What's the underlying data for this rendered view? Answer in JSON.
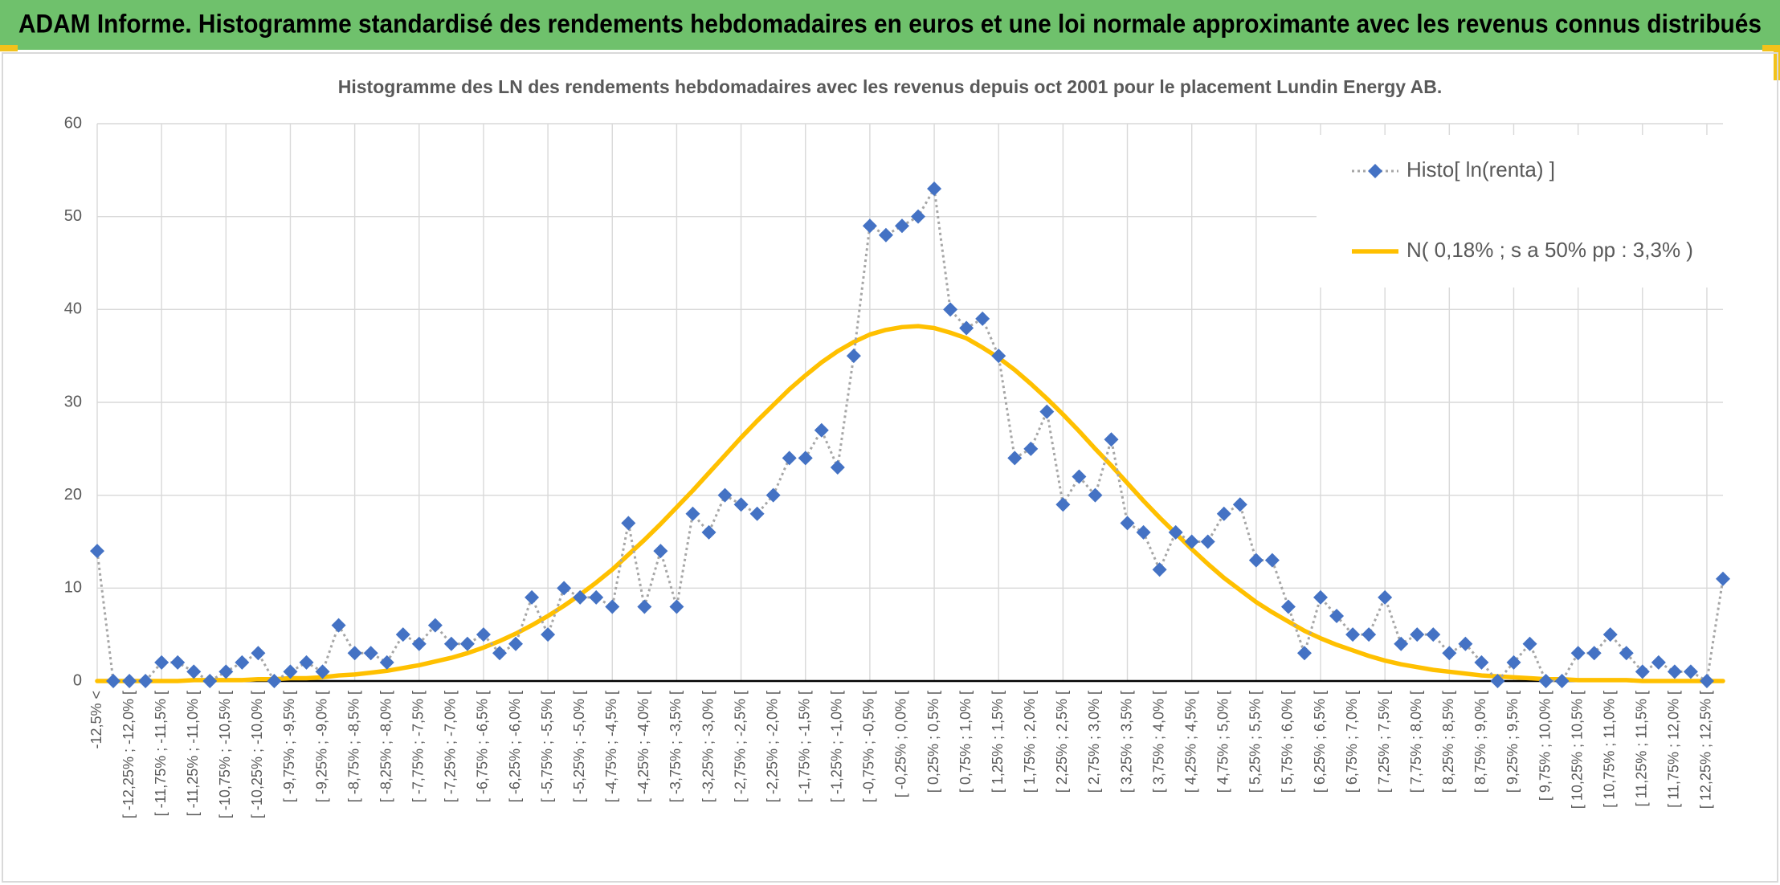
{
  "header": {
    "title": "ADAM Informe. Histogramme standardisé des rendements hebdomadaires en euros et une loi normale approximante avec les revenus connus distribués"
  },
  "chart_data": {
    "type": "line",
    "title": "Histogramme des LN des rendements hebdomadaires avec les revenus depuis oct 2001 pour le placement Lundin Energy AB.",
    "categories": [
      "-12,5% <",
      null,
      "[ -12,25% ; -12,0% [",
      null,
      "[ -11,75% ; -11,5% [",
      null,
      "[ -11,25% ; -11,0% [",
      null,
      "[ -10,75% ; -10,5% [",
      null,
      "[ -10,25% ; -10,0% [",
      null,
      "[ -9,75% ; -9,5% [",
      null,
      "[ -9,25% ; -9,0% [",
      null,
      "[ -8,75% ; -8,5% [",
      null,
      "[ -8,25% ; -8,0% [",
      null,
      "[ -7,75% ; -7,5% [",
      null,
      "[ -7,25% ; -7,0% [",
      null,
      "[ -6,75% ; -6,5% [",
      null,
      "[ -6,25% ; -6,0% [",
      null,
      "[ -5,75% ; -5,5% [",
      null,
      "[ -5,25% ; -5,0% [",
      null,
      "[ -4,75% ; -4,5% [",
      null,
      "[ -4,25% ; -4,0% [",
      null,
      "[ -3,75% ; -3,5% [",
      null,
      "[ -3,25% ; -3,0% [",
      null,
      "[ -2,75% ; -2,5% [",
      null,
      "[ -2,25% ; -2,0% [",
      null,
      "[ -1,75% ; -1,5% [",
      null,
      "[ -1,25% ; -1,0% [",
      null,
      "[ -0,75% ; -0,5% [",
      null,
      "[ -0,25% ; 0,0% [",
      null,
      "[ 0,25% ; 0,5% [",
      null,
      "[ 0,75% ; 1,0% [",
      null,
      "[ 1,25% ; 1,5% [",
      null,
      "[ 1,75% ; 2,0% [",
      null,
      "[ 2,25% ; 2,5% [",
      null,
      "[ 2,75% ; 3,0% [",
      null,
      "[ 3,25% ; 3,5% [",
      null,
      "[ 3,75% ; 4,0% [",
      null,
      "[ 4,25% ; 4,5% [",
      null,
      "[ 4,75% ; 5,0% [",
      null,
      "[ 5,25% ; 5,5% [",
      null,
      "[ 5,75% ; 6,0% [",
      null,
      "[ 6,25% ; 6,5% [",
      null,
      "[ 6,75% ; 7,0% [",
      null,
      "[ 7,25% ; 7,5% [",
      null,
      "[ 7,75% ; 8,0% [",
      null,
      "[ 8,25% ; 8,5% [",
      null,
      "[ 8,75% ; 9,0% [",
      null,
      "[ 9,25% ; 9,5% [",
      null,
      "[ 9,75% ; 10,0% [",
      null,
      "[ 10,25% ; 10,5% [",
      null,
      "[ 10,75% ; 11,0% [",
      null,
      "[ 11,25% ; 11,5% [",
      null,
      "[ 11,75% ; 12,0% [",
      null,
      "[ 12,25% ; 12,5% [",
      null
    ],
    "series": [
      {
        "name": "Histo[ ln(renta) ]",
        "color": "#4472c4",
        "line_color": "#a6a6a6",
        "line_style": "dotted",
        "marker": "diamond",
        "values": [
          14,
          0,
          0,
          0,
          2,
          2,
          1,
          0,
          1,
          2,
          3,
          0,
          1,
          2,
          1,
          6,
          3,
          3,
          2,
          5,
          4,
          6,
          4,
          4,
          5,
          3,
          4,
          9,
          5,
          10,
          9,
          9,
          8,
          17,
          8,
          14,
          8,
          18,
          16,
          20,
          19,
          18,
          20,
          24,
          24,
          27,
          23,
          35,
          49,
          48,
          49,
          50,
          53,
          40,
          38,
          39,
          35,
          24,
          25,
          29,
          19,
          22,
          20,
          26,
          17,
          16,
          12,
          16,
          15,
          15,
          18,
          19,
          13,
          13,
          8,
          3,
          9,
          7,
          5,
          5,
          9,
          4,
          5,
          5,
          3,
          4,
          2,
          0,
          2,
          4,
          0,
          0,
          3,
          3,
          5,
          3,
          1,
          2,
          1,
          1,
          0,
          11
        ]
      },
      {
        "name": "N( 0,18% ; s a 50% pp : 3,3% )",
        "color": "#ffc000",
        "line_style": "solid",
        "marker": "none",
        "values": [
          0,
          0,
          0,
          0,
          0,
          0,
          0.1,
          0.1,
          0.1,
          0.1,
          0.2,
          0.2,
          0.3,
          0.3,
          0.4,
          0.6,
          0.7,
          0.9,
          1.1,
          1.4,
          1.7,
          2.1,
          2.5,
          3.0,
          3.6,
          4.3,
          5.1,
          6.0,
          7.0,
          8.1,
          9.3,
          10.6,
          12.0,
          13.6,
          15.2,
          16.9,
          18.7,
          20.5,
          22.4,
          24.3,
          26.2,
          28.0,
          29.7,
          31.4,
          32.9,
          34.3,
          35.5,
          36.5,
          37.3,
          37.8,
          38.1,
          38.2,
          38.0,
          37.5,
          36.9,
          35.9,
          34.8,
          33.5,
          32.0,
          30.4,
          28.7,
          26.9,
          25.0,
          23.2,
          21.3,
          19.4,
          17.6,
          15.9,
          14.2,
          12.6,
          11.1,
          9.8,
          8.5,
          7.4,
          6.4,
          5.4,
          4.6,
          3.9,
          3.3,
          2.7,
          2.2,
          1.8,
          1.5,
          1.2,
          1.0,
          0.8,
          0.6,
          0.5,
          0.4,
          0.3,
          0.2,
          0.2,
          0.1,
          0.1,
          0.1,
          0.1,
          0,
          0,
          0,
          0,
          0,
          0
        ]
      }
    ],
    "ylim": [
      0,
      60
    ],
    "yticks": [
      0,
      10,
      20,
      30,
      40,
      50,
      60
    ],
    "grid": true,
    "legend": "upper right"
  }
}
